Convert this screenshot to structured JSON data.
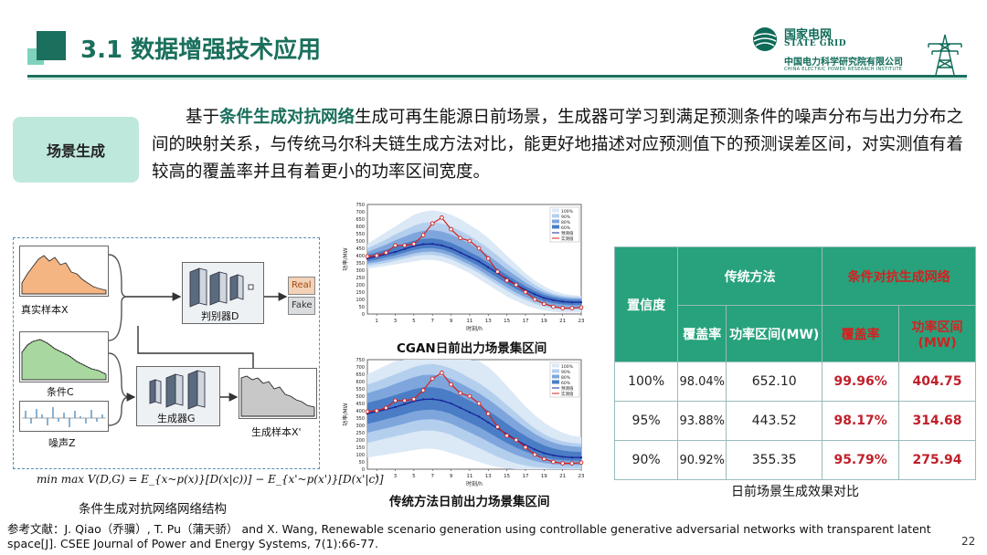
{
  "slide": {
    "title": "3.1 数据增强技术应用",
    "page_number": "22"
  },
  "logo": {
    "cn": "国家电网",
    "en": "STATE GRID",
    "org_cn": "中国电力科学研究院有限公司",
    "org_en": "CHINA ELECTRIC POWER RESEARCH INSTITUTE"
  },
  "tag": {
    "label": "场景生成"
  },
  "description": {
    "prefix": "基于",
    "highlight": "条件生成对抗网络",
    "rest": "生成可再生能源日前场景，生成器可学习到满足预测条件的噪声分布与出力分布之间的映射关系，与传统马尔科夫链生成方法对比，能更好地描述对应预测值下的预测误差区间，对实测值有着较高的覆盖率并且有着更小的功率区间宽度。"
  },
  "architecture": {
    "real_sample": "真实样本X",
    "condition": "条件C",
    "noise": "噪声Z",
    "discriminator": "判别器D",
    "generator": "生成器G",
    "generated_sample": "生成样本X'",
    "real": "Real",
    "fake": "Fake",
    "formula": "min max V(D,G) = E_{x~p(x)}[D(x|c))] − E_{x'~p(x')}[D(x'|c)]",
    "caption": "条件生成对抗网络网络结构"
  },
  "charts": {
    "cgan_caption": "CGAN日前出力场景集区间",
    "traditional_caption": "传统方法日前出力场景集区间",
    "ylabel": "功率/MW",
    "xlabel": "时刻/h",
    "legend": [
      "100%",
      "90%",
      "80%",
      "60%",
      "预测值",
      "实测值"
    ]
  },
  "chart_data": [
    {
      "type": "area",
      "title": "CGAN日前出力场景集区间",
      "xlabel": "时刻/h",
      "ylabel": "功率/MW",
      "xlim": [
        0,
        23
      ],
      "ylim": [
        0,
        750
      ],
      "x_ticks": [
        1,
        3,
        5,
        7,
        9,
        11,
        13,
        15,
        17,
        19,
        21,
        23
      ],
      "y_ticks": [
        0,
        50,
        100,
        150,
        200,
        250,
        300,
        350,
        400,
        450,
        500,
        550,
        600,
        650,
        700,
        750
      ],
      "x": [
        0,
        1,
        2,
        3,
        4,
        5,
        6,
        7,
        8,
        9,
        10,
        11,
        12,
        13,
        14,
        15,
        16,
        17,
        18,
        19,
        20,
        21,
        22,
        23
      ],
      "series": [
        {
          "name": "预测值",
          "values": [
            380,
            395,
            410,
            425,
            445,
            465,
            478,
            480,
            470,
            450,
            420,
            390,
            360,
            320,
            280,
            240,
            200,
            165,
            135,
            110,
            95,
            85,
            80,
            80
          ]
        },
        {
          "name": "实测值",
          "values": [
            395,
            400,
            420,
            470,
            470,
            480,
            540,
            620,
            660,
            580,
            520,
            500,
            450,
            380,
            290,
            230,
            200,
            150,
            100,
            70,
            50,
            40,
            40,
            45
          ]
        },
        {
          "name": "100%",
          "lower": [
            310,
            320,
            330,
            340,
            350,
            360,
            370,
            370,
            360,
            340,
            310,
            280,
            240,
            200,
            160,
            120,
            90,
            60,
            40,
            25,
            15,
            10,
            10,
            10
          ],
          "upper": [
            480,
            520,
            560,
            600,
            640,
            680,
            700,
            710,
            700,
            680,
            650,
            610,
            570,
            520,
            460,
            400,
            340,
            280,
            230,
            190,
            160,
            140,
            130,
            125
          ]
        },
        {
          "name": "90%",
          "lower": [
            330,
            340,
            350,
            365,
            380,
            395,
            405,
            405,
            395,
            375,
            345,
            315,
            280,
            240,
            200,
            160,
            125,
            95,
            70,
            50,
            38,
            30,
            28,
            28
          ],
          "upper": [
            450,
            480,
            510,
            545,
            575,
            605,
            625,
            630,
            620,
            600,
            570,
            535,
            495,
            450,
            400,
            345,
            295,
            245,
            200,
            165,
            140,
            125,
            118,
            115
          ]
        },
        {
          "name": "80%",
          "lower": [
            345,
            355,
            368,
            382,
            398,
            415,
            425,
            428,
            418,
            398,
            368,
            338,
            302,
            262,
            222,
            182,
            145,
            115,
            88,
            68,
            55,
            48,
            45,
            45
          ],
          "upper": [
            425,
            450,
            475,
            505,
            530,
            555,
            570,
            575,
            565,
            545,
            515,
            482,
            445,
            402,
            355,
            305,
            260,
            215,
            178,
            148,
            128,
            115,
            108,
            106
          ]
        },
        {
          "name": "60%",
          "lower": [
            360,
            372,
            388,
            402,
            420,
            438,
            450,
            452,
            442,
            422,
            392,
            362,
            328,
            288,
            248,
            208,
            170,
            138,
            110,
            88,
            74,
            66,
            62,
            62
          ],
          "upper": [
            405,
            422,
            440,
            460,
            482,
            502,
            515,
            518,
            508,
            488,
            458,
            425,
            392,
            352,
            310,
            268,
            228,
            190,
            158,
            132,
            115,
            104,
            98,
            97
          ]
        }
      ]
    },
    {
      "type": "area",
      "title": "传统方法日前出力场景集区间",
      "xlabel": "时刻/h",
      "ylabel": "功率/MW",
      "xlim": [
        0,
        23
      ],
      "ylim": [
        0,
        750
      ],
      "x_ticks": [
        1,
        3,
        5,
        7,
        9,
        11,
        13,
        15,
        17,
        19,
        21,
        23
      ],
      "y_ticks": [
        0,
        50,
        100,
        150,
        200,
        250,
        300,
        350,
        400,
        450,
        500,
        550,
        600,
        650,
        700,
        750
      ],
      "x": [
        0,
        1,
        2,
        3,
        4,
        5,
        6,
        7,
        8,
        9,
        10,
        11,
        12,
        13,
        14,
        15,
        16,
        17,
        18,
        19,
        20,
        21,
        22,
        23
      ],
      "series": [
        {
          "name": "预测值",
          "values": [
            380,
            395,
            410,
            425,
            445,
            465,
            478,
            480,
            470,
            450,
            420,
            390,
            360,
            320,
            280,
            240,
            200,
            165,
            135,
            110,
            95,
            85,
            80,
            80
          ]
        },
        {
          "name": "实测值",
          "values": [
            395,
            400,
            420,
            470,
            470,
            480,
            540,
            620,
            660,
            580,
            520,
            500,
            450,
            380,
            290,
            230,
            200,
            150,
            100,
            70,
            50,
            40,
            40,
            45
          ]
        },
        {
          "name": "100%",
          "lower": [
            80,
            90,
            100,
            110,
            120,
            130,
            140,
            140,
            130,
            110,
            90,
            70,
            50,
            30,
            15,
            5,
            0,
            0,
            0,
            0,
            0,
            0,
            0,
            0
          ],
          "upper": [
            650,
            680,
            710,
            740,
            750,
            750,
            750,
            750,
            750,
            750,
            750,
            750,
            740,
            700,
            640,
            570,
            500,
            430,
            370,
            320,
            280,
            250,
            230,
            220
          ]
        },
        {
          "name": "90%",
          "lower": [
            180,
            195,
            210,
            225,
            240,
            255,
            265,
            265,
            255,
            235,
            205,
            175,
            145,
            115,
            85,
            60,
            40,
            25,
            15,
            10,
            5,
            5,
            5,
            5
          ],
          "upper": [
            580,
            600,
            625,
            650,
            675,
            700,
            715,
            720,
            710,
            690,
            660,
            625,
            590,
            545,
            495,
            440,
            385,
            330,
            280,
            240,
            210,
            190,
            180,
            175
          ]
        },
        {
          "name": "80%",
          "lower": [
            250,
            265,
            280,
            295,
            312,
            330,
            340,
            342,
            332,
            312,
            282,
            252,
            222,
            188,
            155,
            125,
            98,
            75,
            56,
            42,
            34,
            30,
            28,
            28
          ],
          "upper": [
            520,
            540,
            560,
            585,
            608,
            630,
            645,
            648,
            638,
            618,
            588,
            555,
            520,
            478,
            432,
            382,
            332,
            285,
            243,
            208,
            182,
            165,
            156,
            152
          ]
        },
        {
          "name": "60%",
          "lower": [
            310,
            325,
            342,
            358,
            376,
            395,
            405,
            408,
            398,
            378,
            348,
            318,
            288,
            252,
            215,
            180,
            148,
            120,
            98,
            80,
            68,
            62,
            58,
            58
          ],
          "upper": [
            455,
            470,
            488,
            508,
            528,
            548,
            560,
            562,
            552,
            532,
            502,
            470,
            438,
            400,
            358,
            312,
            268,
            228,
            192,
            163,
            142,
            128,
            120,
            118
          ]
        }
      ]
    }
  ],
  "table": {
    "caption": "日前场景生成效果对比",
    "header_confidence": "置信度",
    "header_traditional": "传统方法",
    "header_cgan": "条件对抗生成网络",
    "sub_headers": [
      "覆盖率",
      "功率区间(MW)",
      "覆盖率",
      "功率区间(MW)"
    ],
    "rows": [
      {
        "confidence": "100%",
        "trad_coverage": "98.04%",
        "trad_width": "652.10",
        "cgan_coverage": "99.96%",
        "cgan_width": "404.75"
      },
      {
        "confidence": "95%",
        "trad_coverage": "93.88%",
        "trad_width": "443.52",
        "cgan_coverage": "98.17%",
        "cgan_width": "314.68"
      },
      {
        "confidence": "90%",
        "trad_coverage": "90.92%",
        "trad_width": "355.35",
        "cgan_coverage": "95.79%",
        "cgan_width": "275.94"
      }
    ]
  },
  "reference": {
    "text": "参考文献：J. Qiao（乔骥）, T. Pu（蒲天骄） and X. Wang, Renewable scenario generation using controllable generative adversarial networks with transparent latent space[J]. CSEE Journal of Power and Energy Systems, 7(1):66-77."
  }
}
